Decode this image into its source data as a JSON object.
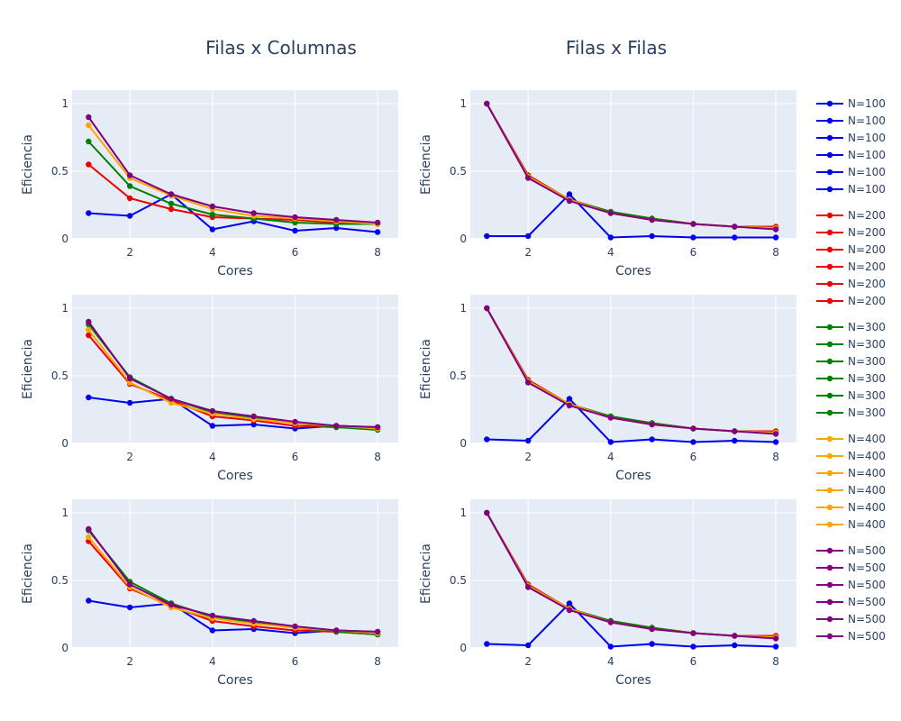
{
  "titles": [
    "Filas x Columnas",
    "Filas x Filas"
  ],
  "colors": {
    "N=100": "#0000ee",
    "N=200": "#ee0000",
    "N=300": "#008000",
    "N=400": "#ffa500",
    "N=500": "#800080"
  },
  "chart_data": [
    {
      "type": "line",
      "title": "Filas x Columnas",
      "xlabel": "Cores",
      "ylabel": "Eficiencia",
      "xlim": [
        0.6,
        8.5
      ],
      "ylim": [
        0,
        1.1
      ],
      "xticks": [
        2,
        4,
        6,
        8
      ],
      "yticks": [
        0,
        0.5,
        1
      ],
      "x": [
        1,
        2,
        3,
        4,
        5,
        6,
        7,
        8
      ],
      "series": [
        {
          "name": "N=100",
          "values": [
            0.19,
            0.17,
            0.33,
            0.07,
            0.13,
            0.06,
            0.08,
            0.05
          ]
        },
        {
          "name": "N=200",
          "values": [
            0.55,
            0.3,
            0.22,
            0.16,
            0.15,
            0.14,
            0.12,
            0.11
          ]
        },
        {
          "name": "N=300",
          "values": [
            0.72,
            0.39,
            0.26,
            0.18,
            0.15,
            0.12,
            0.11,
            0.11
          ]
        },
        {
          "name": "N=400",
          "values": [
            0.84,
            0.45,
            0.32,
            0.22,
            0.17,
            0.15,
            0.13,
            0.11
          ]
        },
        {
          "name": "N=500",
          "values": [
            0.9,
            0.47,
            0.33,
            0.24,
            0.19,
            0.16,
            0.14,
            0.12
          ]
        }
      ]
    },
    {
      "type": "line",
      "title": "Filas x Filas",
      "xlabel": "Cores",
      "ylabel": "Eficiencia",
      "xlim": [
        0.6,
        8.5
      ],
      "ylim": [
        0,
        1.1
      ],
      "xticks": [
        2,
        4,
        6,
        8
      ],
      "yticks": [
        0,
        0.5,
        1
      ],
      "x": [
        1,
        2,
        3,
        4,
        5,
        6,
        7,
        8
      ],
      "series": [
        {
          "name": "N=100",
          "values": [
            0.02,
            0.02,
            0.33,
            0.01,
            0.02,
            0.01,
            0.01,
            0.01
          ]
        },
        {
          "name": "N=200",
          "values": [
            1.0,
            0.47,
            0.29,
            0.2,
            0.15,
            0.11,
            0.09,
            0.09
          ]
        },
        {
          "name": "N=300",
          "values": [
            1.0,
            0.46,
            0.29,
            0.2,
            0.15,
            0.11,
            0.09,
            0.08
          ]
        },
        {
          "name": "N=400",
          "values": [
            1.0,
            0.46,
            0.29,
            0.19,
            0.14,
            0.11,
            0.09,
            0.08
          ]
        },
        {
          "name": "N=500",
          "values": [
            1.0,
            0.45,
            0.28,
            0.19,
            0.14,
            0.11,
            0.09,
            0.07
          ]
        }
      ]
    },
    {
      "type": "line",
      "title": "",
      "xlabel": "Cores",
      "ylabel": "Eficiencia",
      "xlim": [
        0.6,
        8.5
      ],
      "ylim": [
        0,
        1.1
      ],
      "xticks": [
        2,
        4,
        6,
        8
      ],
      "yticks": [
        0,
        0.5,
        1
      ],
      "x": [
        1,
        2,
        3,
        4,
        5,
        6,
        7,
        8
      ],
      "series": [
        {
          "name": "N=100",
          "values": [
            0.34,
            0.3,
            0.33,
            0.13,
            0.14,
            0.11,
            0.13,
            0.12
          ]
        },
        {
          "name": "N=200",
          "values": [
            0.8,
            0.44,
            0.32,
            0.2,
            0.17,
            0.13,
            0.12,
            0.11
          ]
        },
        {
          "name": "N=300",
          "values": [
            0.88,
            0.49,
            0.33,
            0.23,
            0.19,
            0.15,
            0.12,
            0.1
          ]
        },
        {
          "name": "N=400",
          "values": [
            0.84,
            0.45,
            0.3,
            0.22,
            0.18,
            0.15,
            0.13,
            0.11
          ]
        },
        {
          "name": "N=500",
          "values": [
            0.9,
            0.48,
            0.33,
            0.24,
            0.2,
            0.16,
            0.13,
            0.12
          ]
        }
      ]
    },
    {
      "type": "line",
      "title": "",
      "xlabel": "Cores",
      "ylabel": "Eficiencia",
      "xlim": [
        0.6,
        8.5
      ],
      "ylim": [
        0,
        1.1
      ],
      "xticks": [
        2,
        4,
        6,
        8
      ],
      "yticks": [
        0,
        0.5,
        1
      ],
      "x": [
        1,
        2,
        3,
        4,
        5,
        6,
        7,
        8
      ],
      "series": [
        {
          "name": "N=100",
          "values": [
            0.03,
            0.02,
            0.33,
            0.01,
            0.03,
            0.01,
            0.02,
            0.01
          ]
        },
        {
          "name": "N=200",
          "values": [
            1.0,
            0.47,
            0.29,
            0.2,
            0.15,
            0.11,
            0.09,
            0.09
          ]
        },
        {
          "name": "N=300",
          "values": [
            1.0,
            0.46,
            0.29,
            0.2,
            0.15,
            0.11,
            0.09,
            0.08
          ]
        },
        {
          "name": "N=400",
          "values": [
            1.0,
            0.46,
            0.29,
            0.19,
            0.14,
            0.11,
            0.09,
            0.08
          ]
        },
        {
          "name": "N=500",
          "values": [
            1.0,
            0.45,
            0.28,
            0.19,
            0.14,
            0.11,
            0.09,
            0.07
          ]
        }
      ]
    },
    {
      "type": "line",
      "title": "",
      "xlabel": "Cores",
      "ylabel": "Eficiencia",
      "xlim": [
        0.6,
        8.5
      ],
      "ylim": [
        0,
        1.1
      ],
      "xticks": [
        2,
        4,
        6,
        8
      ],
      "yticks": [
        0,
        0.5,
        1
      ],
      "x": [
        1,
        2,
        3,
        4,
        5,
        6,
        7,
        8
      ],
      "series": [
        {
          "name": "N=100",
          "values": [
            0.35,
            0.3,
            0.33,
            0.13,
            0.14,
            0.11,
            0.13,
            0.12
          ]
        },
        {
          "name": "N=200",
          "values": [
            0.79,
            0.44,
            0.31,
            0.2,
            0.16,
            0.13,
            0.12,
            0.1
          ]
        },
        {
          "name": "N=300",
          "values": [
            0.87,
            0.49,
            0.33,
            0.23,
            0.19,
            0.15,
            0.12,
            0.1
          ]
        },
        {
          "name": "N=400",
          "values": [
            0.82,
            0.45,
            0.3,
            0.22,
            0.18,
            0.15,
            0.13,
            0.11
          ]
        },
        {
          "name": "N=500",
          "values": [
            0.88,
            0.47,
            0.32,
            0.24,
            0.2,
            0.16,
            0.13,
            0.12
          ]
        }
      ]
    },
    {
      "type": "line",
      "title": "",
      "xlabel": "Cores",
      "ylabel": "Eficiencia",
      "xlim": [
        0.6,
        8.5
      ],
      "ylim": [
        0,
        1.1
      ],
      "xticks": [
        2,
        4,
        6,
        8
      ],
      "yticks": [
        0,
        0.5,
        1
      ],
      "x": [
        1,
        2,
        3,
        4,
        5,
        6,
        7,
        8
      ],
      "series": [
        {
          "name": "N=100",
          "values": [
            0.03,
            0.02,
            0.33,
            0.01,
            0.03,
            0.01,
            0.02,
            0.01
          ]
        },
        {
          "name": "N=200",
          "values": [
            1.0,
            0.47,
            0.29,
            0.2,
            0.15,
            0.11,
            0.09,
            0.09
          ]
        },
        {
          "name": "N=300",
          "values": [
            1.0,
            0.46,
            0.29,
            0.2,
            0.15,
            0.11,
            0.09,
            0.08
          ]
        },
        {
          "name": "N=400",
          "values": [
            1.0,
            0.46,
            0.29,
            0.19,
            0.14,
            0.11,
            0.09,
            0.08
          ]
        },
        {
          "name": "N=500",
          "values": [
            1.0,
            0.45,
            0.28,
            0.19,
            0.14,
            0.11,
            0.09,
            0.07
          ]
        }
      ]
    }
  ],
  "legend": {
    "placement": "right",
    "entries": [
      "N=100",
      "N=100",
      "N=100",
      "N=100",
      "N=100",
      "N=100",
      "N=200",
      "N=200",
      "N=200",
      "N=200",
      "N=200",
      "N=200",
      "N=300",
      "N=300",
      "N=300",
      "N=300",
      "N=300",
      "N=300",
      "N=400",
      "N=400",
      "N=400",
      "N=400",
      "N=400",
      "N=400",
      "N=500",
      "N=500",
      "N=500",
      "N=500",
      "N=500",
      "N=500"
    ]
  }
}
